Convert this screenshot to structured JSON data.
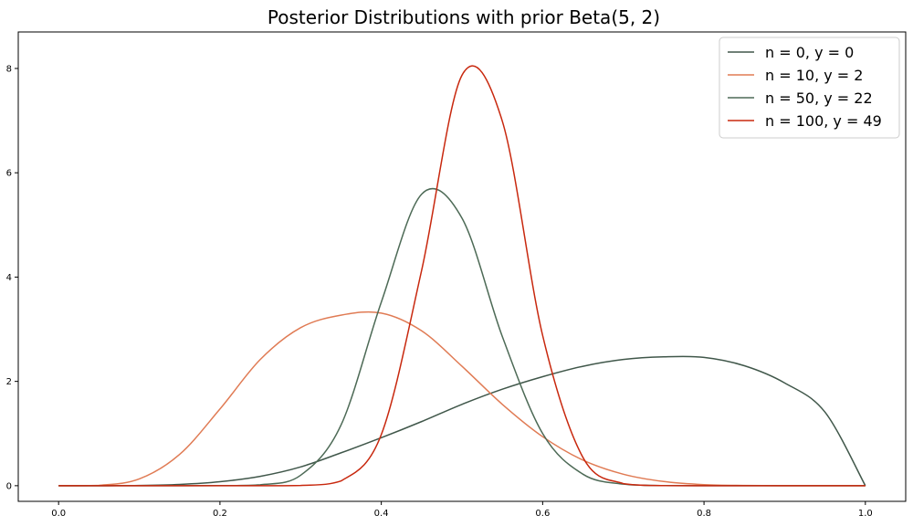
{
  "chart_data": {
    "type": "line",
    "title": "Posterior Distributions with prior Beta(5, 2)",
    "xlabel": "",
    "ylabel": "",
    "xlim": [
      -0.05,
      1.05
    ],
    "ylim": [
      -0.3,
      8.7
    ],
    "xticks": [
      0.0,
      0.2,
      0.4,
      0.6,
      0.8,
      1.0
    ],
    "xtick_labels": [
      "0.0",
      "0.2",
      "0.4",
      "0.6",
      "0.8",
      "1.0"
    ],
    "yticks": [
      0,
      2,
      4,
      6,
      8
    ],
    "ytick_labels": [
      "0",
      "2",
      "4",
      "6",
      "8"
    ],
    "grid": false,
    "legend_position": "top-right",
    "x": [
      0.0,
      0.05,
      0.1,
      0.15,
      0.2,
      0.25,
      0.3,
      0.35,
      0.4,
      0.45,
      0.5,
      0.55,
      0.6,
      0.65,
      0.7,
      0.75,
      0.8,
      0.85,
      0.9,
      0.95,
      1.0
    ],
    "series": [
      {
        "name": "n = 0, y = 0",
        "color": "#40574a",
        "values": [
          0,
          0.0004,
          0.005,
          0.025,
          0.077,
          0.18,
          0.36,
          0.63,
          0.92,
          1.23,
          1.56,
          1.85,
          2.09,
          2.29,
          2.42,
          2.47,
          2.46,
          2.3,
          1.97,
          1.41,
          0
        ]
      },
      {
        "name": "n = 10, y = 2",
        "color": "#e07b54",
        "values": [
          0,
          0.007,
          0.13,
          0.6,
          1.47,
          2.42,
          3.03,
          3.27,
          3.31,
          2.97,
          2.29,
          1.56,
          0.94,
          0.49,
          0.22,
          0.08,
          0.02,
          0.004,
          0.0003,
          0,
          0
        ]
      },
      {
        "name": "n = 50, y = 22",
        "color": "#4d6a56",
        "values": [
          0,
          0,
          0,
          0,
          0.001,
          0.018,
          0.2,
          1.16,
          3.52,
          5.59,
          5.13,
          2.86,
          1.0,
          0.22,
          0.03,
          0.002,
          0,
          0,
          0,
          0,
          0
        ]
      },
      {
        "name": "n = 100, y = 49",
        "color": "#c8280e",
        "values": [
          0,
          0,
          0,
          0,
          0,
          0,
          0.005,
          0.09,
          0.98,
          4.13,
          7.87,
          6.99,
          2.88,
          0.54,
          0.04,
          0.001,
          0,
          0,
          0,
          0,
          0
        ]
      }
    ]
  }
}
